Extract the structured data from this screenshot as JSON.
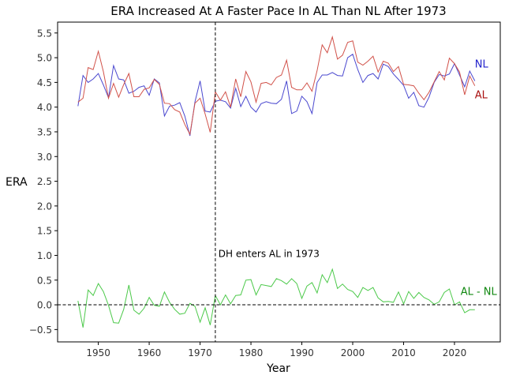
{
  "chart_data": {
    "type": "line",
    "title": "ERA Increased At A Faster Pace In AL Than NL After 1973",
    "xlabel": "Year",
    "ylabel": "ERA",
    "xlim": [
      1942,
      2029
    ],
    "ylim": [
      -0.75,
      5.72
    ],
    "xticks": [
      1950,
      1960,
      1970,
      1980,
      1990,
      2000,
      2010,
      2020
    ],
    "yticks": [
      -0.5,
      0.0,
      0.5,
      1.0,
      1.5,
      2.0,
      2.5,
      3.0,
      3.5,
      4.0,
      4.5,
      5.0,
      5.5
    ],
    "ytick_labels": [
      "−0.5",
      "0.0",
      "0.5",
      "1.0",
      "1.5",
      "2.0",
      "2.5",
      "3.0",
      "3.5",
      "4.0",
      "4.5",
      "5.0",
      "5.5"
    ],
    "grid": false,
    "x": [
      1946,
      1947,
      1948,
      1949,
      1950,
      1951,
      1952,
      1953,
      1954,
      1955,
      1956,
      1957,
      1958,
      1959,
      1960,
      1961,
      1962,
      1963,
      1964,
      1965,
      1966,
      1967,
      1968,
      1969,
      1970,
      1971,
      1972,
      1973,
      1974,
      1975,
      1976,
      1977,
      1978,
      1979,
      1980,
      1981,
      1982,
      1983,
      1984,
      1985,
      1986,
      1987,
      1988,
      1989,
      1990,
      1991,
      1992,
      1993,
      1994,
      1995,
      1996,
      1997,
      1998,
      1999,
      2000,
      2001,
      2002,
      2003,
      2004,
      2005,
      2006,
      2007,
      2008,
      2009,
      2010,
      2011,
      2012,
      2013,
      2014,
      2015,
      2016,
      2017,
      2018,
      2019,
      2020,
      2021,
      2022,
      2023,
      2024
    ],
    "series": [
      {
        "name": "NL",
        "color": "#4a48cf",
        "values": [
          4.02,
          4.64,
          4.5,
          4.57,
          4.68,
          4.45,
          4.19,
          4.84,
          4.57,
          4.55,
          4.28,
          4.32,
          4.4,
          4.43,
          4.24,
          4.57,
          4.49,
          3.82,
          4.02,
          4.04,
          4.09,
          3.82,
          3.42,
          4.11,
          4.53,
          3.92,
          3.9,
          4.12,
          4.14,
          4.11,
          3.98,
          4.38,
          4.01,
          4.22,
          4.0,
          3.9,
          4.07,
          4.11,
          4.08,
          4.07,
          4.16,
          4.53,
          3.87,
          3.92,
          4.22,
          4.11,
          3.87,
          4.5,
          4.65,
          4.65,
          4.7,
          4.64,
          4.63,
          5.0,
          5.07,
          4.76,
          4.5,
          4.64,
          4.68,
          4.57,
          4.87,
          4.82,
          4.67,
          4.56,
          4.44,
          4.18,
          4.3,
          4.03,
          4.0,
          4.2,
          4.5,
          4.66,
          4.63,
          4.67,
          4.88,
          4.65,
          4.41,
          4.73,
          4.53
        ]
      },
      {
        "name": "AL",
        "color": "#d1524a",
        "values": [
          4.1,
          4.18,
          4.8,
          4.76,
          5.13,
          4.72,
          4.18,
          4.48,
          4.2,
          4.46,
          4.68,
          4.21,
          4.21,
          4.36,
          4.39,
          4.56,
          4.46,
          4.08,
          4.07,
          3.95,
          3.9,
          3.65,
          3.45,
          4.08,
          4.18,
          3.86,
          3.49,
          4.31,
          4.14,
          4.31,
          4.0,
          4.57,
          4.21,
          4.72,
          4.51,
          4.1,
          4.48,
          4.5,
          4.45,
          4.6,
          4.65,
          4.95,
          4.4,
          4.35,
          4.35,
          4.49,
          4.32,
          4.74,
          5.26,
          5.1,
          5.42,
          4.97,
          5.05,
          5.31,
          5.34,
          4.91,
          4.85,
          4.93,
          5.03,
          4.71,
          4.93,
          4.89,
          4.72,
          4.82,
          4.46,
          4.45,
          4.43,
          4.28,
          4.15,
          4.3,
          4.51,
          4.72,
          4.55,
          4.99,
          4.88,
          4.71,
          4.25,
          4.63,
          4.43
        ]
      },
      {
        "name": "AL - NL",
        "color": "#4cc94a",
        "values": [
          0.08,
          -0.46,
          0.3,
          0.19,
          0.43,
          0.27,
          -0.01,
          -0.36,
          -0.37,
          -0.09,
          0.4,
          -0.11,
          -0.19,
          -0.07,
          0.15,
          -0.01,
          -0.03,
          0.26,
          0.05,
          -0.09,
          -0.19,
          -0.17,
          0.03,
          -0.03,
          -0.35,
          -0.06,
          -0.41,
          0.19,
          0.0,
          0.2,
          0.02,
          0.19,
          0.2,
          0.5,
          0.51,
          0.2,
          0.41,
          0.39,
          0.37,
          0.53,
          0.49,
          0.42,
          0.53,
          0.43,
          0.13,
          0.38,
          0.45,
          0.24,
          0.61,
          0.45,
          0.72,
          0.33,
          0.42,
          0.31,
          0.27,
          0.15,
          0.35,
          0.29,
          0.35,
          0.14,
          0.06,
          0.07,
          0.05,
          0.26,
          0.02,
          0.27,
          0.13,
          0.25,
          0.15,
          0.1,
          0.01,
          0.06,
          0.25,
          0.32,
          0.0,
          0.06,
          -0.16,
          -0.1,
          -0.1
        ]
      }
    ],
    "reference_lines": [
      {
        "orientation": "vertical",
        "x": 1973,
        "style": "dashed",
        "color": "#000000"
      },
      {
        "orientation": "horizontal",
        "y": 0.0,
        "style": "dashed",
        "color": "#000000"
      }
    ],
    "annotations": [
      {
        "text": "DH enters AL in 1973",
        "x": 1973.6,
        "y": 0.97
      },
      {
        "text": "NL",
        "x": 2024.0,
        "y": 4.8,
        "color": "#2222cc"
      },
      {
        "text": "AL",
        "x": 2024.0,
        "y": 4.18,
        "color": "#aa1111"
      },
      {
        "text": "AL - NL",
        "x": 2021.2,
        "y": 0.2,
        "color": "#118811"
      }
    ]
  }
}
